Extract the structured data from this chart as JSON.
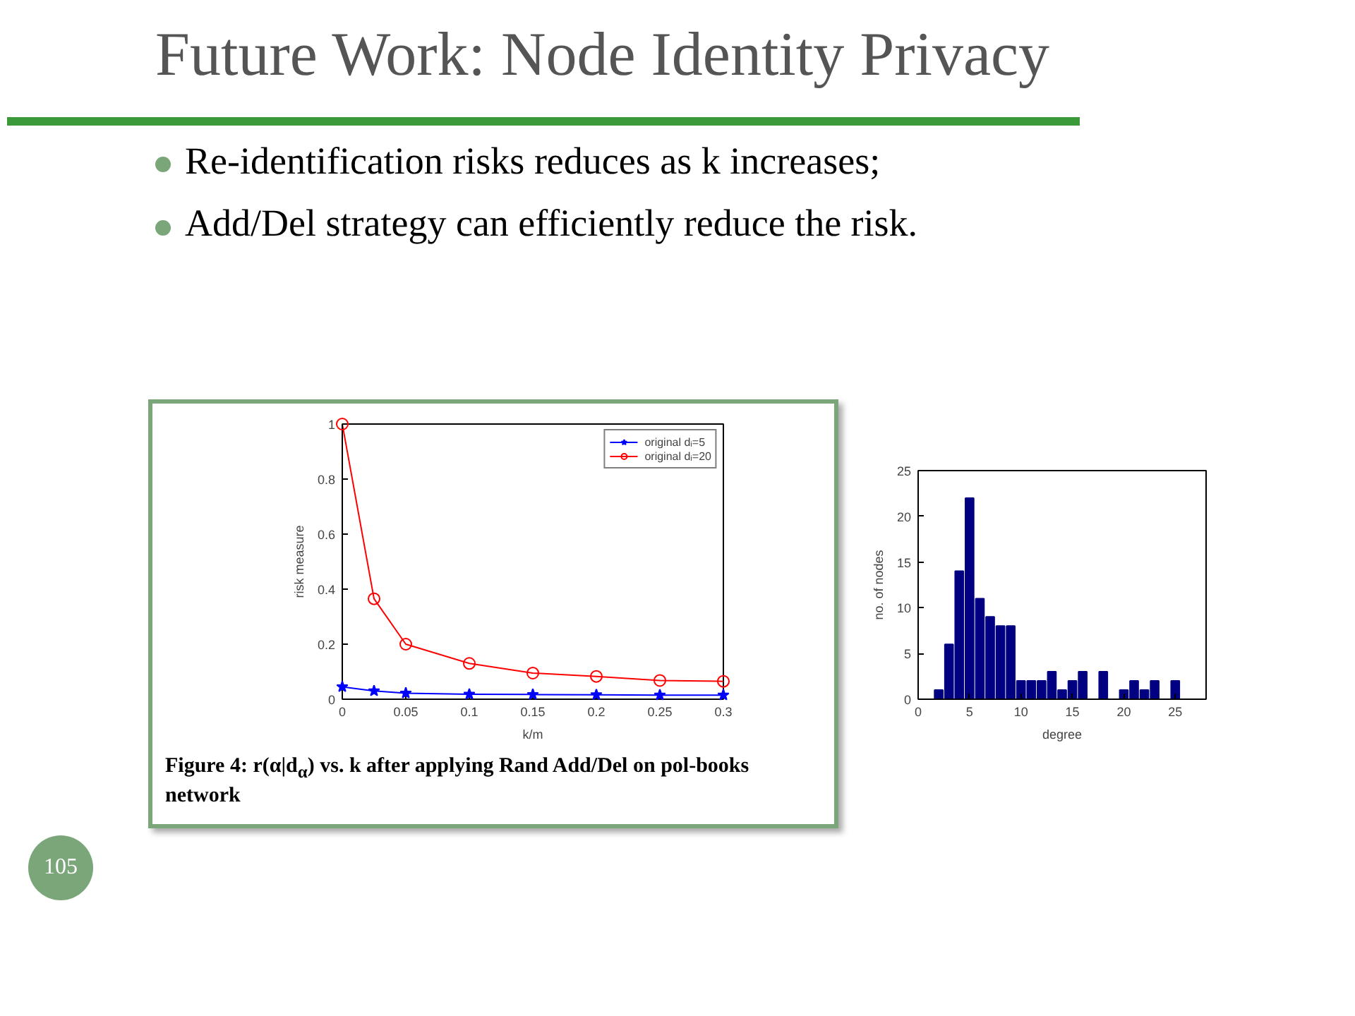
{
  "chart_data": [
    {
      "type": "other",
      "title": "Future Work: Node Identity Privacy",
      "annotations": [
        "Re-identification risks reduces as k increases;",
        "Add/Del strategy can efficiently reduce the risk.",
        "105"
      ]
    },
    {
      "type": "line",
      "xlabel": "k/m",
      "ylabel": "risk measure",
      "x": [
        0,
        0.025,
        0.05,
        0.1,
        0.15,
        0.2,
        0.25,
        0.3
      ],
      "xlim": [
        0,
        0.3
      ],
      "xticks": [
        0,
        0.05,
        0.1,
        0.15,
        0.2,
        0.25,
        0.3
      ],
      "ylim": [
        0,
        1
      ],
      "yticks": [
        0,
        0.2,
        0.4,
        0.6,
        0.8,
        1
      ],
      "grid": false,
      "legend": "top right",
      "line_style": "solid",
      "series": [
        {
          "name": "original dᵢ=5",
          "color": "#0000ff",
          "marker": "star",
          "values": [
            0.045,
            0.03,
            0.022,
            0.018,
            0.017,
            0.016,
            0.015,
            0.015
          ]
        },
        {
          "name": "original dᵢ=20",
          "color": "#ff0000",
          "marker": "circle",
          "values": [
            1,
            0.365,
            0.2,
            0.13,
            0.095,
            0.083,
            0.068,
            0.065
          ]
        }
      ],
      "annotations": [
        "Figure 4: r(α|d$_{α}$) vs. k after applying Rand Add/Del on pol-books network"
      ]
    },
    {
      "type": "bar",
      "xlabel": "degree",
      "ylabel": "no. of nodes",
      "x": [
        2,
        3,
        4,
        5,
        6,
        7,
        8,
        9,
        10,
        11,
        12,
        13,
        14,
        15,
        16,
        17,
        18,
        19,
        20,
        21,
        22,
        23,
        24,
        25
      ],
      "values": [
        1,
        6,
        14,
        22,
        11,
        9,
        8,
        8,
        2,
        2,
        2,
        3,
        1,
        2,
        3,
        0,
        3,
        0,
        1,
        2,
        1,
        2,
        0,
        2
      ],
      "color": "#000080",
      "xlim": [
        0,
        28
      ],
      "xticks": [
        0,
        5,
        10,
        15,
        20,
        25
      ],
      "ylim": [
        0,
        25
      ],
      "yticks": [
        0,
        5,
        10,
        15,
        20,
        25
      ],
      "grid": false
    }
  ]
}
